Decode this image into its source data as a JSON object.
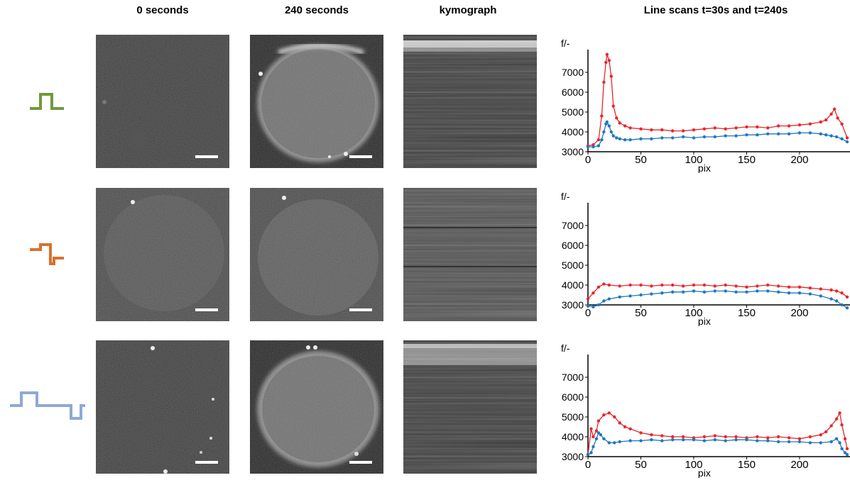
{
  "headers": {
    "col0": "0 seconds",
    "col1": "240 seconds",
    "col2": "kymograph",
    "col3": "Line scans t=30s  and t=240s"
  },
  "rows": [
    {
      "pulse_icon": "single-positive-pulse-icon",
      "pulse_color": "#6e9b3b"
    },
    {
      "pulse_icon": "bipolar-pulse-icon",
      "pulse_color": "#d9712d"
    },
    {
      "pulse_icon": "wide-bipolar-pulse-icon",
      "pulse_color": "#8ea9d4"
    }
  ],
  "chart_data": [
    {
      "type": "line",
      "ylabel": "f/-",
      "xlabel": "pix",
      "xlim": [
        0,
        245
      ],
      "ylim": [
        3000,
        8000
      ],
      "xticks": [
        0,
        50,
        100,
        150,
        200
      ],
      "yticks": [
        3000,
        4000,
        5000,
        6000,
        7000
      ],
      "series": [
        {
          "color": "#e8262b",
          "x": [
            0,
            5,
            10,
            13,
            15,
            17,
            18,
            20,
            22,
            24,
            27,
            30,
            35,
            40,
            50,
            60,
            70,
            80,
            90,
            100,
            110,
            120,
            130,
            140,
            150,
            160,
            170,
            180,
            190,
            200,
            210,
            220,
            225,
            230,
            233,
            236,
            240,
            245
          ],
          "y": [
            3300,
            3350,
            3600,
            4800,
            6500,
            7500,
            7900,
            7600,
            6800,
            5300,
            4700,
            4450,
            4300,
            4200,
            4150,
            4100,
            4100,
            4050,
            4050,
            4100,
            4150,
            4200,
            4150,
            4200,
            4250,
            4250,
            4200,
            4300,
            4300,
            4350,
            4400,
            4500,
            4600,
            4900,
            5150,
            4700,
            4400,
            3700
          ]
        },
        {
          "color": "#1f77c0",
          "x": [
            0,
            5,
            10,
            13,
            15,
            17,
            18,
            20,
            22,
            24,
            27,
            30,
            35,
            40,
            50,
            60,
            70,
            80,
            90,
            100,
            110,
            120,
            130,
            140,
            150,
            160,
            170,
            180,
            190,
            200,
            210,
            220,
            225,
            230,
            235,
            240,
            245
          ],
          "y": [
            3250,
            3250,
            3300,
            3600,
            4000,
            4400,
            4500,
            4300,
            4000,
            3800,
            3700,
            3650,
            3600,
            3600,
            3650,
            3650,
            3700,
            3700,
            3750,
            3700,
            3750,
            3750,
            3800,
            3800,
            3850,
            3850,
            3900,
            3900,
            3900,
            3950,
            3950,
            3900,
            3850,
            3800,
            3750,
            3650,
            3500
          ]
        }
      ]
    },
    {
      "type": "line",
      "ylabel": "f/-",
      "xlabel": "pix",
      "xlim": [
        0,
        245
      ],
      "ylim": [
        3000,
        8000
      ],
      "xticks": [
        0,
        50,
        100,
        150,
        200
      ],
      "yticks": [
        3000,
        4000,
        5000,
        6000,
        7000
      ],
      "series": [
        {
          "color": "#e8262b",
          "x": [
            0,
            5,
            10,
            15,
            20,
            30,
            40,
            50,
            60,
            70,
            80,
            90,
            100,
            110,
            120,
            130,
            140,
            150,
            160,
            170,
            180,
            190,
            200,
            210,
            220,
            230,
            235,
            240,
            245
          ],
          "y": [
            3300,
            3600,
            3900,
            4050,
            4000,
            3950,
            4000,
            4000,
            3950,
            4000,
            4000,
            3950,
            4000,
            4000,
            3950,
            4000,
            3950,
            3900,
            3950,
            4000,
            3950,
            3900,
            3900,
            3850,
            3800,
            3750,
            3700,
            3600,
            3400
          ]
        },
        {
          "color": "#1f77c0",
          "x": [
            0,
            5,
            10,
            15,
            20,
            30,
            40,
            50,
            60,
            70,
            80,
            90,
            100,
            110,
            120,
            130,
            140,
            150,
            160,
            170,
            180,
            190,
            200,
            210,
            220,
            230,
            235,
            240,
            245
          ],
          "y": [
            2950,
            2900,
            3000,
            3200,
            3300,
            3400,
            3450,
            3500,
            3550,
            3600,
            3650,
            3650,
            3700,
            3650,
            3700,
            3700,
            3650,
            3650,
            3700,
            3700,
            3650,
            3600,
            3600,
            3550,
            3450,
            3300,
            3200,
            3000,
            2850
          ]
        }
      ]
    },
    {
      "type": "line",
      "ylabel": "f/-",
      "xlabel": "pix",
      "xlim": [
        0,
        245
      ],
      "ylim": [
        3000,
        8000
      ],
      "xticks": [
        0,
        50,
        100,
        150,
        200
      ],
      "yticks": [
        3000,
        4000,
        5000,
        6000,
        7000
      ],
      "series": [
        {
          "color": "#e8262b",
          "x": [
            0,
            3,
            5,
            8,
            10,
            15,
            20,
            25,
            30,
            35,
            40,
            50,
            60,
            70,
            80,
            90,
            100,
            110,
            120,
            130,
            140,
            150,
            160,
            170,
            180,
            190,
            200,
            210,
            220,
            225,
            230,
            235,
            238,
            240,
            243,
            245
          ],
          "y": [
            3100,
            4400,
            4000,
            4300,
            4800,
            5100,
            5200,
            5000,
            4700,
            4500,
            4400,
            4200,
            4100,
            4050,
            4000,
            4000,
            3950,
            4000,
            4050,
            4000,
            4000,
            3950,
            4000,
            3950,
            4000,
            3950,
            3900,
            4000,
            4100,
            4250,
            4550,
            4900,
            5200,
            4600,
            3900,
            3400
          ]
        },
        {
          "color": "#1f77c0",
          "x": [
            0,
            3,
            5,
            8,
            10,
            12,
            15,
            20,
            25,
            30,
            40,
            50,
            60,
            70,
            80,
            90,
            100,
            110,
            120,
            130,
            140,
            150,
            160,
            170,
            180,
            190,
            200,
            210,
            220,
            230,
            235,
            238,
            240,
            243,
            245
          ],
          "y": [
            3100,
            3200,
            3500,
            3900,
            4200,
            4100,
            3900,
            3700,
            3700,
            3750,
            3800,
            3800,
            3850,
            3800,
            3850,
            3850,
            3850,
            3800,
            3850,
            3800,
            3850,
            3850,
            3800,
            3800,
            3750,
            3750,
            3750,
            3700,
            3700,
            3750,
            3900,
            3700,
            3400,
            3200,
            3100
          ]
        }
      ]
    }
  ]
}
